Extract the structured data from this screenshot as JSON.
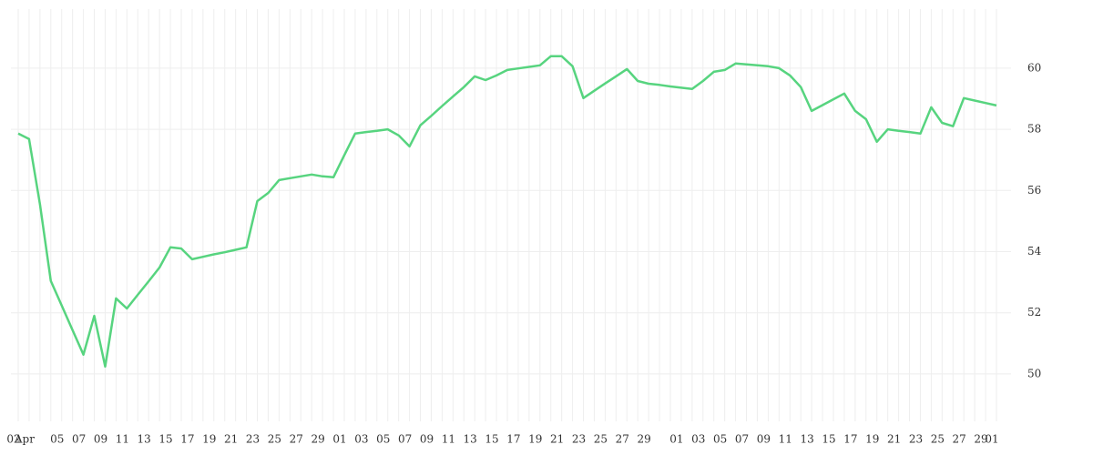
{
  "chart_data": {
    "type": "line",
    "grid": true,
    "color": "#57d47f",
    "categories": [
      "02",
      "Apr",
      null,
      null,
      "05",
      null,
      "07",
      null,
      "09",
      null,
      "11",
      null,
      "13",
      null,
      "15",
      null,
      "17",
      null,
      "19",
      null,
      "21",
      null,
      "23",
      null,
      "25",
      null,
      "27",
      null,
      "29",
      null,
      "01",
      null,
      "03",
      null,
      "05",
      null,
      "07",
      null,
      "09",
      null,
      "11",
      null,
      "13",
      null,
      "15",
      null,
      "17",
      null,
      "19",
      null,
      "21",
      null,
      "23",
      null,
      "25",
      null,
      "27",
      null,
      "29",
      null,
      null,
      "01",
      null,
      "03",
      null,
      "05",
      null,
      "07",
      null,
      "09",
      null,
      "11",
      null,
      "13",
      null,
      "15",
      null,
      "17",
      null,
      "19",
      null,
      "21",
      null,
      "23",
      null,
      "25",
      null,
      "27",
      null,
      "29",
      "01"
    ],
    "values": [
      57.86,
      57.68,
      55.54,
      53.04,
      52.24,
      51.43,
      50.63,
      51.9,
      50.24,
      52.47,
      52.14,
      52.59,
      53.03,
      53.48,
      54.14,
      54.1,
      53.75,
      53.83,
      53.91,
      53.98,
      54.06,
      54.14,
      55.65,
      55.92,
      56.34,
      56.4,
      56.46,
      56.52,
      56.46,
      56.43,
      57.15,
      57.86,
      57.91,
      57.95,
      58.0,
      57.8,
      57.44,
      58.13,
      58.44,
      58.76,
      59.07,
      59.38,
      59.73,
      59.61,
      59.76,
      59.94,
      59.99,
      60.04,
      60.09,
      60.39,
      60.39,
      60.06,
      59.02,
      59.26,
      59.5,
      59.73,
      59.97,
      59.58,
      59.49,
      59.45,
      59.4,
      59.36,
      59.32,
      59.58,
      59.88,
      59.94,
      60.15,
      60.12,
      60.09,
      60.06,
      60.0,
      59.76,
      59.38,
      58.6,
      58.79,
      58.98,
      59.17,
      58.6,
      58.33,
      57.59,
      58.0,
      57.95,
      57.91,
      57.86,
      58.72,
      58.21,
      58.1,
      59.02,
      58.94,
      58.86,
      58.78
    ],
    "ylim": [
      48.45,
      61.93
    ],
    "yticks": [
      50,
      52,
      54,
      56,
      58,
      60
    ]
  }
}
